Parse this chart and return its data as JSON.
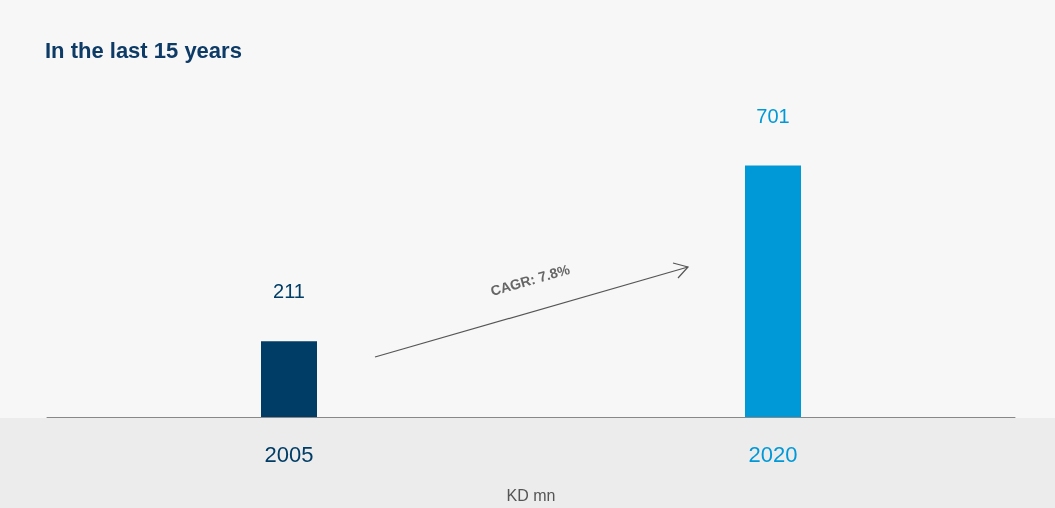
{
  "chart_data": {
    "type": "bar",
    "title": "In the last 15 years",
    "xlabel": "KD mn",
    "categories": [
      "2005",
      "2020"
    ],
    "values": [
      211,
      701
    ],
    "colors": [
      "#003d66",
      "#0099d8"
    ],
    "data_labels": true,
    "annotations": [
      "CAGR: 7.8%"
    ]
  }
}
